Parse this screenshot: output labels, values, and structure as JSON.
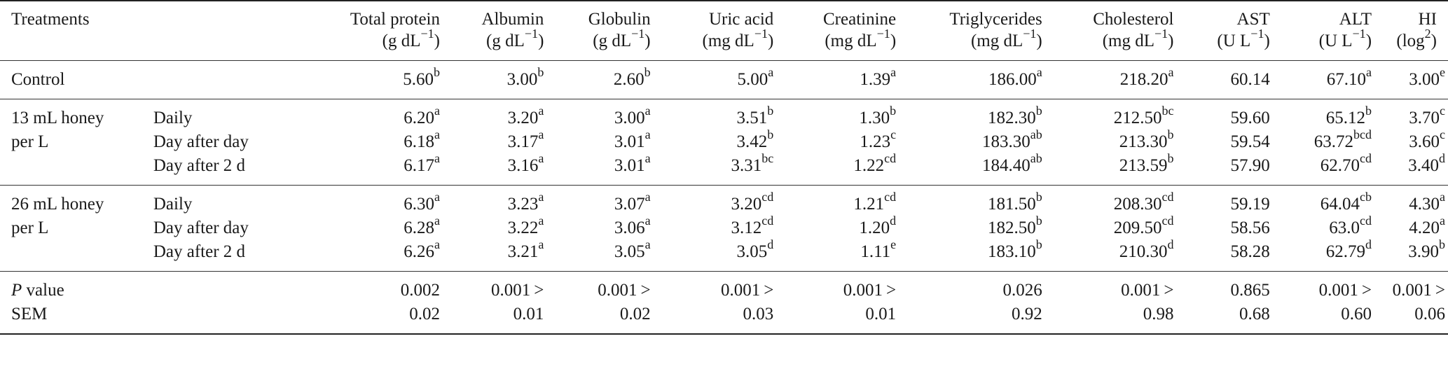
{
  "headers": [
    {
      "name": "Treatments",
      "unit": ""
    },
    {
      "name": "Total protein",
      "unit": "(g dL−1)"
    },
    {
      "name": "Albumin",
      "unit": "(g dL−1)"
    },
    {
      "name": "Globulin",
      "unit": "(g dL−1)"
    },
    {
      "name": "Uric acid",
      "unit": "(mg dL−1)"
    },
    {
      "name": "Creatinine",
      "unit": "(mg dL−1)"
    },
    {
      "name": "Triglycerides",
      "unit": "(mg dL−1)"
    },
    {
      "name": "Cholesterol",
      "unit": "(mg dL−1)"
    },
    {
      "name": "AST",
      "unit": "(U L−1)"
    },
    {
      "name": "ALT",
      "unit": "(U L−1)"
    },
    {
      "name": "HI",
      "unit": "(log2)"
    }
  ],
  "groups": [
    {
      "label": [
        "Control"
      ],
      "rows": [
        {
          "schedule": "",
          "cells": [
            [
              "5.60",
              "b"
            ],
            [
              "3.00",
              "b"
            ],
            [
              "2.60",
              "b"
            ],
            [
              "5.00",
              "a"
            ],
            [
              "1.39",
              "a"
            ],
            [
              "186.00",
              "a"
            ],
            [
              "218.20",
              "a"
            ],
            [
              "60.14",
              ""
            ],
            [
              "67.10",
              "a"
            ],
            [
              "3.00",
              "e"
            ]
          ]
        }
      ]
    },
    {
      "label": [
        "13 mL honey",
        "per L"
      ],
      "rows": [
        {
          "schedule": "Daily",
          "cells": [
            [
              "6.20",
              "a"
            ],
            [
              "3.20",
              "a"
            ],
            [
              "3.00",
              "a"
            ],
            [
              "3.51",
              "b"
            ],
            [
              "1.30",
              "b"
            ],
            [
              "182.30",
              "b"
            ],
            [
              "212.50",
              "bc"
            ],
            [
              "59.60",
              ""
            ],
            [
              "65.12",
              "b"
            ],
            [
              "3.70",
              "c"
            ]
          ]
        },
        {
          "schedule": "Day after day",
          "cells": [
            [
              "6.18",
              "a"
            ],
            [
              "3.17",
              "a"
            ],
            [
              "3.01",
              "a"
            ],
            [
              "3.42",
              "b"
            ],
            [
              "1.23",
              "c"
            ],
            [
              "183.30",
              "ab"
            ],
            [
              "213.30",
              "b"
            ],
            [
              "59.54",
              ""
            ],
            [
              "63.72",
              "bcd"
            ],
            [
              "3.60",
              "c"
            ]
          ]
        },
        {
          "schedule": "Day after 2 d",
          "cells": [
            [
              "6.17",
              "a"
            ],
            [
              "3.16",
              "a"
            ],
            [
              "3.01",
              "a"
            ],
            [
              "3.31",
              "bc"
            ],
            [
              "1.22",
              "cd"
            ],
            [
              "184.40",
              "ab"
            ],
            [
              "213.59",
              "b"
            ],
            [
              "57.90",
              ""
            ],
            [
              "62.70",
              "cd"
            ],
            [
              "3.40",
              "d"
            ]
          ]
        }
      ]
    },
    {
      "label": [
        "26 mL honey",
        "per L"
      ],
      "rows": [
        {
          "schedule": "Daily",
          "cells": [
            [
              "6.30",
              "a"
            ],
            [
              "3.23",
              "a"
            ],
            [
              "3.07",
              "a"
            ],
            [
              "3.20",
              "cd"
            ],
            [
              "1.21",
              "cd"
            ],
            [
              "181.50",
              "b"
            ],
            [
              "208.30",
              "cd"
            ],
            [
              "59.19",
              ""
            ],
            [
              "64.04",
              "cb"
            ],
            [
              "4.30",
              "a"
            ]
          ]
        },
        {
          "schedule": "Day after day",
          "cells": [
            [
              "6.28",
              "a"
            ],
            [
              "3.22",
              "a"
            ],
            [
              "3.06",
              "a"
            ],
            [
              "3.12",
              "cd"
            ],
            [
              "1.20",
              "d"
            ],
            [
              "182.50",
              "b"
            ],
            [
              "209.50",
              "cd"
            ],
            [
              "58.56",
              ""
            ],
            [
              "63.0",
              "cd"
            ],
            [
              "4.20",
              "a"
            ]
          ]
        },
        {
          "schedule": "Day after 2 d",
          "cells": [
            [
              "6.26",
              "a"
            ],
            [
              "3.21",
              "a"
            ],
            [
              "3.05",
              "a"
            ],
            [
              "3.05",
              "d"
            ],
            [
              "1.11",
              "e"
            ],
            [
              "183.10",
              "b"
            ],
            [
              "210.30",
              "d"
            ],
            [
              "58.28",
              ""
            ],
            [
              "62.79",
              "d"
            ],
            [
              "3.90",
              "b"
            ]
          ]
        }
      ]
    }
  ],
  "stats": [
    {
      "label_italic": "P",
      "label": " value",
      "values": [
        "0.002",
        "0.001 >",
        "0.001 >",
        "0.001 >",
        "0.001 >",
        "0.026",
        "0.001 >",
        "0.865",
        "0.001 >",
        "0.001 >"
      ]
    },
    {
      "label_italic": "",
      "label": "SEM",
      "values": [
        "0.02",
        "0.01",
        "0.02",
        "0.03",
        "0.01",
        "0.92",
        "0.98",
        "0.68",
        "0.60",
        "0.06"
      ]
    }
  ]
}
